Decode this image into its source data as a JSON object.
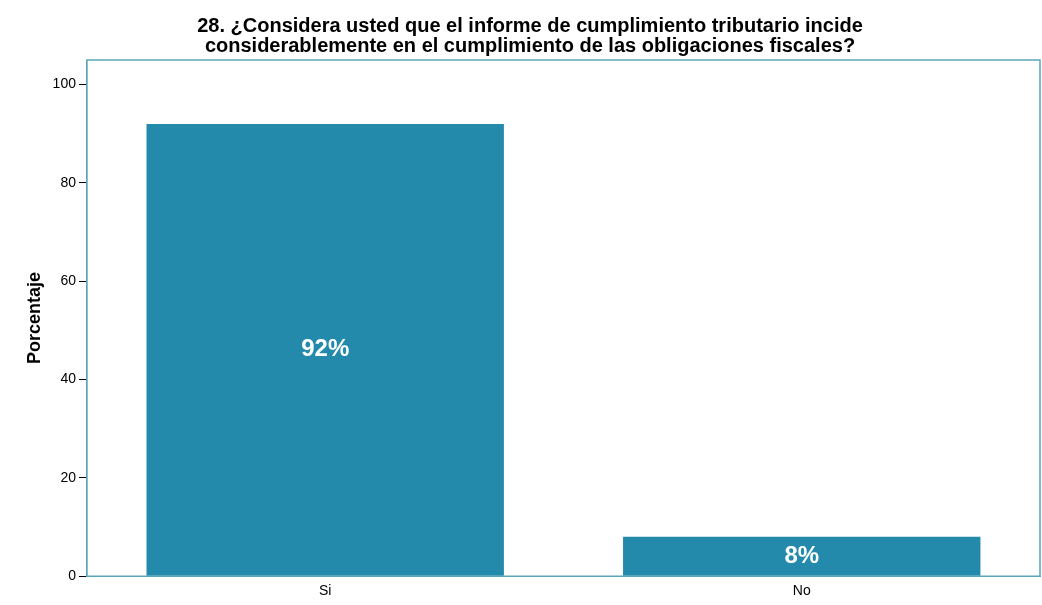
{
  "chart_data": {
    "type": "bar",
    "title": "28. ¿Considera usted que el informe de cumplimiento tributario incide\nconsiderablemente en el cumplimiento de las obligaciones fiscales?",
    "ylabel": "Porcentaje",
    "categories": [
      "Si",
      "No"
    ],
    "values": [
      92,
      8
    ],
    "color": "#248aab",
    "value_labels": [
      "92%",
      "8%"
    ],
    "ylim": [
      0,
      105
    ],
    "yticks": [
      0,
      20,
      40,
      60,
      80,
      100
    ],
    "grid": false,
    "legend": false
  }
}
